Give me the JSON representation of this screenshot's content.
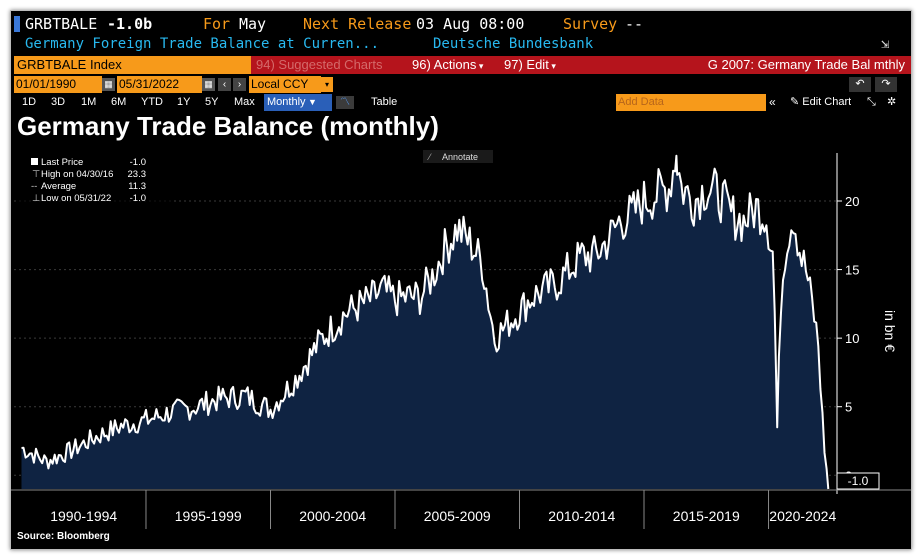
{
  "header": {
    "ticker": "GRBTBALE",
    "last_value": "-1.0b",
    "for_label": "For",
    "for_value": "May",
    "next_release_label": "Next Release",
    "next_release_value": "03 Aug 08:00",
    "survey_label": "Survey",
    "survey_value": "--",
    "description": "Germany Foreign Trade Balance at Curren...",
    "source_name": "Deutsche Bundesbank"
  },
  "toolbar": {
    "security": "GRBTBALE Index",
    "suggested": "94) Suggested Charts",
    "actions": "96) Actions",
    "edit": "97) Edit",
    "chart_name": "G 2007: Germany Trade Bal mthly",
    "date_from": "01/01/1990",
    "date_to": "05/31/2022",
    "currency": "Local CCY",
    "ranges": [
      "1D",
      "3D",
      "1M",
      "6M",
      "YTD",
      "1Y",
      "5Y",
      "Max"
    ],
    "frequency": "Monthly",
    "table_label": "Table",
    "add_data_placeholder": "Add Data",
    "edit_chart": "Edit Chart"
  },
  "chart_title": "Germany Trade Balance (monthly)",
  "annotate": "Annotate",
  "legend": {
    "last_price_label": "Last Price",
    "last_price_value": "-1.0",
    "high_label": "High on 04/30/16",
    "high_value": "23.3",
    "average_label": "Average",
    "average_value": "11.3",
    "low_label": "Low on 05/31/22",
    "low_value": "-1.0"
  },
  "source_text": "Source: Bloomberg",
  "colors": {
    "background": "#000000",
    "area": "#0f2342",
    "line": "#ffffff",
    "orange": "#f79a1a",
    "red_bar": "#b5141c",
    "cyan": "#28b9f0"
  },
  "chart_data": {
    "type": "area",
    "title": "Germany Trade Balance (monthly)",
    "ylabel": "in bn €",
    "ylim": [
      -1.0,
      23.5
    ],
    "yticks": [
      "0",
      "5",
      "10",
      "15",
      "20"
    ],
    "x_categories": [
      "1990-1994",
      "1995-1999",
      "2000-2004",
      "2005-2009",
      "2010-2014",
      "2015-2019",
      "2020-2024"
    ],
    "last_value_label": "-1.0",
    "series": [
      {
        "x": [
          1990.0,
          1991.0,
          1992.0,
          1993.0,
          1994.0,
          1995.0,
          1996.0,
          1997.0,
          1998.0,
          1999.0,
          2000.0,
          2001.0,
          2002.0,
          2003.0,
          2004.0,
          2004.5,
          2005.0,
          2005.5,
          2006.0,
          2006.5,
          2007.0,
          2007.5,
          2008.0,
          2008.5,
          2009.0,
          2009.5,
          2010.0,
          2010.5,
          2011.0,
          2011.5,
          2012.0,
          2012.5,
          2013.0,
          2013.5,
          2014.0,
          2014.5,
          2015.0,
          2015.5,
          2016.0,
          2016.3,
          2016.5,
          2017.0,
          2017.5,
          2018.0,
          2018.5,
          2019.0,
          2019.5,
          2019.9,
          2020.2,
          2020.35,
          2020.5,
          2020.7,
          2021.0,
          2021.3,
          2021.5,
          2021.8,
          2022.0,
          2022.2,
          2022.4
        ],
        "values": [
          2.0,
          1.0,
          1.8,
          2.8,
          3.6,
          4.0,
          4.6,
          5.0,
          5.6,
          5.8,
          4.8,
          7.0,
          9.8,
          11.8,
          12.8,
          13.5,
          12.8,
          13.0,
          13.0,
          14.5,
          16.5,
          18.0,
          17.0,
          15.5,
          10.0,
          11.0,
          12.0,
          13.0,
          13.5,
          14.0,
          15.0,
          16.0,
          16.0,
          17.0,
          18.5,
          19.0,
          20.0,
          20.5,
          21.0,
          23.3,
          21.0,
          20.0,
          21.0,
          20.5,
          19.0,
          18.5,
          19.5,
          19.0,
          16.0,
          3.5,
          13.0,
          17.0,
          19.0,
          16.0,
          15.0,
          12.0,
          9.5,
          3.0,
          -1.0
        ]
      }
    ]
  }
}
